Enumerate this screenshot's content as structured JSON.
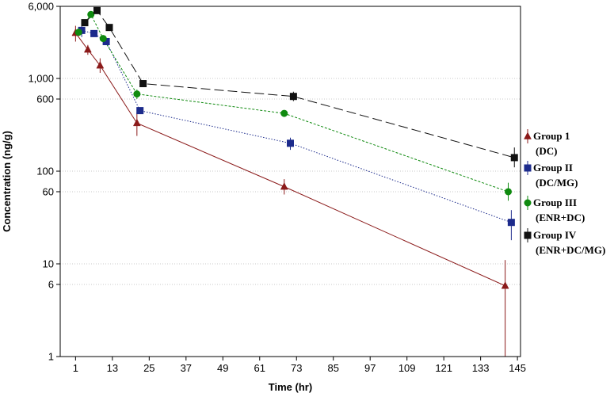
{
  "chart_data": {
    "type": "line",
    "title": "",
    "xlabel": "Time (hr)",
    "ylabel": "Concentration (ng/g)",
    "x_scale": "linear",
    "y_scale": "log",
    "xlim": [
      -4,
      146
    ],
    "ylim": [
      1,
      6000
    ],
    "x_ticks": [
      1,
      13,
      25,
      37,
      49,
      61,
      73,
      85,
      97,
      109,
      121,
      133,
      145
    ],
    "x_tick_labels": [
      "1",
      "13",
      "25",
      "37",
      "49",
      "61",
      "73",
      "85",
      "97",
      "109",
      "121",
      "133",
      "145"
    ],
    "y_ticks": [
      1,
      6,
      10,
      60,
      100,
      600,
      1000,
      6000
    ],
    "y_tick_labels": [
      "1",
      "6",
      "10",
      "60",
      "100",
      "600",
      "1,000",
      "6,000"
    ],
    "grid": {
      "horizontal": true,
      "vertical": false
    },
    "legend_position": "right",
    "series": [
      {
        "name": "Group 1 (DC)",
        "legend_lines": [
          "Group 1",
          "(DC)"
        ],
        "color": "#8b1a1a",
        "marker": "triangle",
        "line_style": "solid",
        "points": [
          {
            "x": 1,
            "y": 3100,
            "err_low": 2500,
            "err_high": 3700
          },
          {
            "x": 5,
            "y": 2050,
            "err_low": 1800,
            "err_high": 2300
          },
          {
            "x": 9,
            "y": 1380,
            "err_low": 1150,
            "err_high": 1650
          },
          {
            "x": 21,
            "y": 330,
            "err_low": 240,
            "err_high": 430
          },
          {
            "x": 69,
            "y": 68,
            "err_low": 56,
            "err_high": 82
          },
          {
            "x": 141,
            "y": 5.8,
            "err_low": 1,
            "err_high": 11
          }
        ]
      },
      {
        "name": "Group II (DC/MG)",
        "legend_lines": [
          "Group II",
          "(DC/MG)"
        ],
        "color": "#1c2b8c",
        "marker": "square",
        "line_style": "dotted",
        "points": [
          {
            "x": 3,
            "y": 3300,
            "err_low": 2800,
            "err_high": 3800
          },
          {
            "x": 7,
            "y": 3050,
            "err_low": 2850,
            "err_high": 3250
          },
          {
            "x": 11,
            "y": 2500,
            "err_low": 2300,
            "err_high": 2700
          },
          {
            "x": 22,
            "y": 450,
            "err_low": 420,
            "err_high": 480
          },
          {
            "x": 71,
            "y": 200,
            "err_low": 170,
            "err_high": 230
          },
          {
            "x": 143,
            "y": 28,
            "err_low": 18,
            "err_high": 38
          }
        ]
      },
      {
        "name": "Group III (ENR+DC)",
        "legend_lines": [
          "Group III",
          "(ENR+DC)"
        ],
        "color": "#0f8a0f",
        "marker": "circle",
        "line_style": "dashed",
        "points": [
          {
            "x": 2,
            "y": 3150,
            "err_low": 2900,
            "err_high": 3400
          },
          {
            "x": 6,
            "y": 4900,
            "err_low": 4700,
            "err_high": 5100
          },
          {
            "x": 10,
            "y": 2700,
            "err_low": 2550,
            "err_high": 2850
          },
          {
            "x": 21,
            "y": 680,
            "err_low": 600,
            "err_high": 760
          },
          {
            "x": 69,
            "y": 420,
            "err_low": 400,
            "err_high": 440
          },
          {
            "x": 142,
            "y": 60,
            "err_low": 48,
            "err_high": 75
          }
        ]
      },
      {
        "name": "Group IV (ENR+DC/MG)",
        "legend_lines": [
          "Group IV",
          "(ENR+DC/MG)"
        ],
        "color": "#111111",
        "marker": "square",
        "line_style": "longdash",
        "points": [
          {
            "x": 4,
            "y": 4000,
            "err_low": 3700,
            "err_high": 4300
          },
          {
            "x": 8,
            "y": 5400,
            "err_low": 5100,
            "err_high": 5700
          },
          {
            "x": 12,
            "y": 3550,
            "err_low": 3350,
            "err_high": 3750
          },
          {
            "x": 23,
            "y": 880,
            "err_low": 850,
            "err_high": 910
          },
          {
            "x": 72,
            "y": 640,
            "err_low": 570,
            "err_high": 720
          },
          {
            "x": 144,
            "y": 140,
            "err_low": 110,
            "err_high": 180
          }
        ]
      }
    ]
  }
}
